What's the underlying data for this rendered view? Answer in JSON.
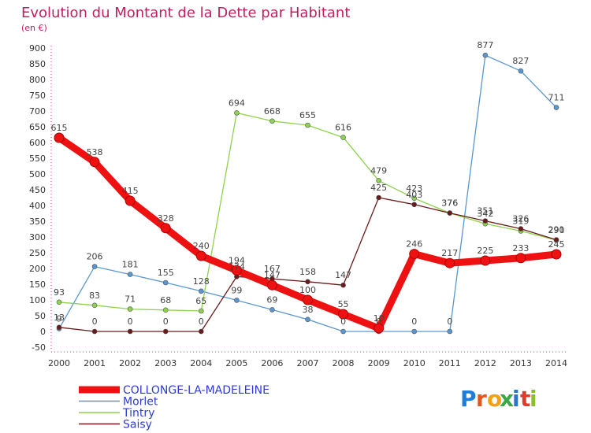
{
  "chart_data": {
    "type": "line",
    "title": "Evolution du Montant de la Dette par Habitant",
    "subtitle": "(en €)",
    "x": [
      "2000",
      "2001",
      "2002",
      "2003",
      "2004",
      "2005",
      "2006",
      "2007",
      "2008",
      "2009",
      "2010",
      "2011",
      "2012",
      "2013",
      "2014"
    ],
    "ylim": [
      -50,
      900
    ],
    "yticks": [
      -50,
      0,
      50,
      100,
      150,
      200,
      250,
      300,
      350,
      400,
      450,
      500,
      550,
      600,
      650,
      700,
      750,
      800,
      850,
      900
    ],
    "grid": false,
    "legend_placement": "bottom-left",
    "series": [
      {
        "name": "COLLONGE-LA-MADELEINE",
        "color": "#ee1111",
        "values": [
          615,
          538,
          415,
          328,
          240,
          194,
          147,
          100,
          55,
          10,
          246,
          217,
          225,
          233,
          245
        ]
      },
      {
        "name": "Morlet",
        "color": "#5a96cf",
        "values": [
          9,
          206,
          181,
          155,
          128,
          99,
          69,
          38,
          0,
          0,
          0,
          0,
          877,
          827,
          711
        ]
      },
      {
        "name": "Tintry",
        "color": "#8ed24e",
        "values": [
          93,
          83,
          71,
          68,
          65,
          694,
          668,
          655,
          616,
          479,
          423,
          376,
          342,
          319,
          290
        ]
      },
      {
        "name": "Saisy",
        "color": "#6a1a1a",
        "values": [
          13,
          0,
          0,
          0,
          0,
          174,
          167,
          158,
          147,
          425,
          403,
          376,
          351,
          326,
          291
        ]
      }
    ]
  },
  "logo": {
    "text": "Proxiti",
    "letters": [
      "P",
      "r",
      "o",
      "x",
      "i",
      "t",
      "i"
    ],
    "colors": [
      "#1f7fd8",
      "#e8541a",
      "#f2a30f",
      "#3aa845",
      "#2e74c9",
      "#e03a2c",
      "#8bbf2a"
    ]
  }
}
